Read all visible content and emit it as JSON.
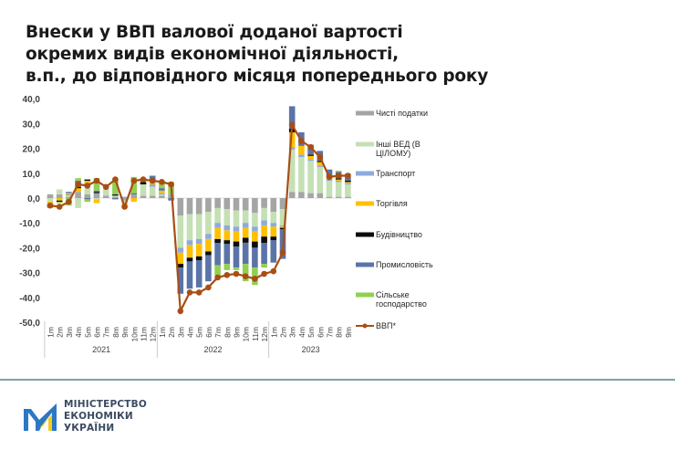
{
  "title": {
    "lines": [
      "Внески у ВВП валової доданої вартості",
      "окремих видів економічної діяльності,",
      "в.п., до відповідного місяця попереднього року"
    ]
  },
  "logo": {
    "lines": [
      "МІНІСТЕРСТВО",
      "ЕКОНОМІКИ",
      "УКРАЇНИ"
    ],
    "colors": {
      "blue": "#2b78c4",
      "yellow": "#f5cc1d"
    }
  },
  "chart_data": {
    "type": "bar",
    "stacked": true,
    "title": "Внески у ВВП валової доданої вартості окремих видів економічної діяльності, в.п., до відповідного місяця попереднього року",
    "xlabel": "",
    "ylabel": "",
    "ylim": [
      -50,
      40
    ],
    "yticks": [
      "40,0",
      "30,0",
      "20,0",
      "10,0",
      "0,0",
      "-10,0",
      "-20,0",
      "-30,0",
      "-40,0",
      "-50,0"
    ],
    "grid": false,
    "legend_position": "right",
    "years": [
      {
        "label": "2021",
        "count": 12
      },
      {
        "label": "2022",
        "count": 12
      },
      {
        "label": "2023",
        "count": 9
      }
    ],
    "categories": [
      "1m",
      "2m",
      "3m",
      "4m",
      "5m",
      "6m",
      "7m",
      "8m",
      "9m",
      "10m",
      "11m",
      "12m",
      "1m",
      "2m",
      "3m",
      "4m",
      "5m",
      "6m",
      "7m",
      "8m",
      "9m",
      "10m",
      "11m",
      "12m",
      "1m",
      "2m",
      "3m",
      "4m",
      "5m",
      "6m",
      "7m",
      "8m",
      "9m"
    ],
    "series": [
      {
        "name": "Чисті податки",
        "color": "#a5a5a5",
        "values": [
          1.5,
          1.5,
          0.5,
          2.5,
          1.5,
          1.5,
          1.0,
          0.5,
          -1.0,
          1.5,
          1.0,
          1.0,
          1.0,
          1.5,
          -7.0,
          -6.5,
          -6.5,
          -5.5,
          -4.0,
          -4.5,
          -5.0,
          -5.0,
          -6.0,
          -4.0,
          -5.5,
          -4.5,
          2.5,
          2.5,
          2.0,
          2.0,
          0.5,
          0.5,
          0.5
        ]
      },
      {
        "name": "Інші ВЕД (В ЦІЛОМУ)",
        "color": "#c5e0b4",
        "values": [
          -1.5,
          2.0,
          0.5,
          -4.0,
          3.5,
          -0.5,
          3.5,
          0.5,
          -1.5,
          0.0,
          4.5,
          3.5,
          0.5,
          0.0,
          -13.0,
          -10.5,
          -10.0,
          -9.0,
          -6.0,
          -6.5,
          -6.5,
          -5.0,
          -5.5,
          -5.0,
          -4.5,
          -6.5,
          17.0,
          14.0,
          13.0,
          10.5,
          6.5,
          6.0,
          5.0
        ]
      },
      {
        "name": "Транспорт",
        "color": "#8faadc",
        "values": [
          0.0,
          0.0,
          0.5,
          0.0,
          1.0,
          0.5,
          0.5,
          0.0,
          0.5,
          0.0,
          0.0,
          1.0,
          0.5,
          0.0,
          -2.0,
          -2.0,
          -2.0,
          -2.0,
          -2.0,
          -2.0,
          -2.0,
          -2.0,
          -2.0,
          -2.0,
          -1.5,
          -0.5,
          1.0,
          1.0,
          0.5,
          0.5,
          0.5,
          0.5,
          0.5
        ]
      },
      {
        "name": "Торгівля",
        "color": "#ffc000",
        "values": [
          -1.5,
          -1.0,
          0.5,
          1.5,
          1.0,
          -1.5,
          0.0,
          0.0,
          -1.5,
          -1.5,
          0.0,
          1.5,
          1.0,
          0.0,
          -4.5,
          -5.0,
          -5.0,
          -5.0,
          -4.5,
          -4.0,
          -4.0,
          -4.0,
          -4.0,
          -4.5,
          -4.0,
          -0.5,
          6.0,
          3.5,
          1.5,
          1.5,
          1.0,
          0.5,
          0.5
        ]
      },
      {
        "name": "Будівництво",
        "color": "#0d0d0d",
        "values": [
          -0.5,
          -0.5,
          0.0,
          0.5,
          0.5,
          0.5,
          0.5,
          0.5,
          0.0,
          0.0,
          1.0,
          0.5,
          0.0,
          0.0,
          -1.5,
          -1.5,
          -1.5,
          -1.5,
          -1.5,
          -1.5,
          -2.0,
          -2.0,
          -2.5,
          -2.5,
          -1.5,
          -0.5,
          1.5,
          0.0,
          0.5,
          0.5,
          0.0,
          0.5,
          0.5
        ]
      },
      {
        "name": "Промисловість",
        "color": "#5b74a8",
        "values": [
          0.0,
          0.0,
          0.5,
          2.5,
          -0.5,
          0.5,
          0.0,
          -0.5,
          0.0,
          0.5,
          0.0,
          1.5,
          1.0,
          -1.0,
          -10.5,
          -11.0,
          -11.0,
          -10.5,
          -9.0,
          -8.0,
          -8.5,
          -8.5,
          -8.0,
          -8.5,
          -9.0,
          -12.0,
          9.0,
          5.5,
          4.0,
          4.0,
          3.0,
          2.5,
          2.5
        ]
      },
      {
        "name": "Сільське господарство",
        "color": "#92d050",
        "values": [
          -0.5,
          -0.5,
          -3.0,
          1.0,
          -1.0,
          5.0,
          0.0,
          6.0,
          0.0,
          6.5,
          1.5,
          0.0,
          3.0,
          5.0,
          0.0,
          0.0,
          0.0,
          0.0,
          -4.5,
          -2.5,
          -1.0,
          -7.0,
          -7.0,
          -1.5,
          0.0,
          0.0,
          0.0,
          0.0,
          0.0,
          0.0,
          0.0,
          0.5,
          0.5
        ]
      }
    ],
    "line": {
      "name": "ВВП*",
      "color": "#a84e15",
      "values": [
        -3.0,
        -3.5,
        -1.5,
        5.5,
        5.0,
        7.0,
        4.5,
        7.5,
        -3.5,
        7.0,
        7.5,
        7.0,
        6.5,
        5.5,
        -45.5,
        -38.0,
        -38.0,
        -36.0,
        -32.0,
        -31.0,
        -30.5,
        -31.5,
        -32.5,
        -30.5,
        -29.5,
        -22.0,
        29.5,
        23.0,
        20.5,
        16.5,
        8.5,
        9.0,
        9.0
      ]
    }
  }
}
